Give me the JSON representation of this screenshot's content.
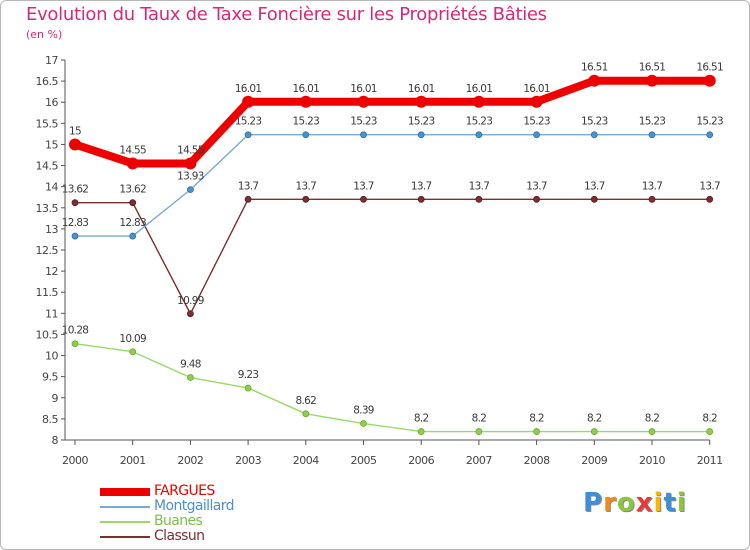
{
  "header": {
    "title": "Evolution du Taux de Taxe Foncière sur les Propriétés Bâties",
    "unit": "(en %)"
  },
  "brand": {
    "letters": [
      "P",
      "r",
      "o",
      "x",
      "i",
      "t",
      "i"
    ],
    "colors": [
      "#3a8fd6",
      "#f08a1c",
      "#8cc63f",
      "#e83a3a",
      "#f5b800",
      "#3a8fd6",
      "#8cc63f"
    ]
  },
  "chart_data": {
    "type": "line",
    "title": "Evolution du Taux de Taxe Foncière sur les Propriétés Bâties",
    "ylabel": "(en %)",
    "xlabel": "",
    "ylim": [
      8,
      17
    ],
    "yticks": [
      "8",
      "8.5",
      "9",
      "9.5",
      "10",
      "10.5",
      "11",
      "11.5",
      "12",
      "12.5",
      "13",
      "13.5",
      "14",
      "14.5",
      "15",
      "15.5",
      "16",
      "16.5",
      "17"
    ],
    "x": [
      "2000",
      "2001",
      "2002",
      "2003",
      "2004",
      "2005",
      "2006",
      "2007",
      "2008",
      "2009",
      "2010",
      "2011"
    ],
    "series": [
      {
        "name": "Buanes",
        "color": "#99d86c",
        "marker_fill": "#8fcf4a",
        "marker_stroke": "#6aa72f",
        "values": [
          10.28,
          10.09,
          9.48,
          9.23,
          8.62,
          8.39,
          8.2,
          8.2,
          8.2,
          8.2,
          8.2,
          8.2
        ],
        "labels": [
          "10.28",
          "10.09",
          "9.48",
          "9.23",
          "8.62",
          "8.39",
          "8.2",
          "8.2",
          "8.2",
          "8.2",
          "8.2",
          "8.2"
        ]
      },
      {
        "name": "Classun",
        "color": "#7b2f2f",
        "marker_fill": "#7b2f2f",
        "marker_stroke": "#5a1f1f",
        "values": [
          13.62,
          13.62,
          10.99,
          13.7,
          13.7,
          13.7,
          13.7,
          13.7,
          13.7,
          13.7,
          13.7,
          13.7
        ],
        "labels": [
          "13.62",
          "13.62",
          "10.99",
          "13.7",
          "13.7",
          "13.7",
          "13.7",
          "13.7",
          "13.7",
          "13.7",
          "13.7",
          "13.7"
        ]
      },
      {
        "name": "Montgaillard",
        "color": "#7aa9d2",
        "marker_fill": "#4f90c9",
        "marker_stroke": "#2f6fa6",
        "values": [
          12.83,
          12.83,
          13.93,
          15.23,
          15.23,
          15.23,
          15.23,
          15.23,
          15.23,
          15.23,
          15.23,
          15.23
        ],
        "labels": [
          "12.83",
          "12.83",
          "13.93",
          "15.23",
          "15.23",
          "15.23",
          "15.23",
          "15.23",
          "15.23",
          "15.23",
          "15.23",
          "15.23"
        ]
      },
      {
        "name": "FARGUES",
        "color": "#ee0000",
        "marker_fill": "#ee0000",
        "marker_stroke": "#ee0000",
        "values": [
          15,
          14.55,
          14.55,
          16.01,
          16.01,
          16.01,
          16.01,
          16.01,
          16.01,
          16.51,
          16.51,
          16.51
        ],
        "labels": [
          "15",
          "14.55",
          "14.55",
          "16.01",
          "16.01",
          "16.01",
          "16.01",
          "16.01",
          "16.01",
          "16.51",
          "16.51",
          "16.51"
        ]
      }
    ],
    "legend": [
      {
        "name": "FARGUES",
        "color": "#ee0000",
        "weight": "thick"
      },
      {
        "name": "Montgaillard",
        "color": "#7aa9d2",
        "weight": "thin"
      },
      {
        "name": "Buanes",
        "color": "#99d86c",
        "weight": "thin"
      },
      {
        "name": "Classun",
        "color": "#7b2f2f",
        "weight": "thin"
      }
    ],
    "legend_position": "bottom-left"
  }
}
